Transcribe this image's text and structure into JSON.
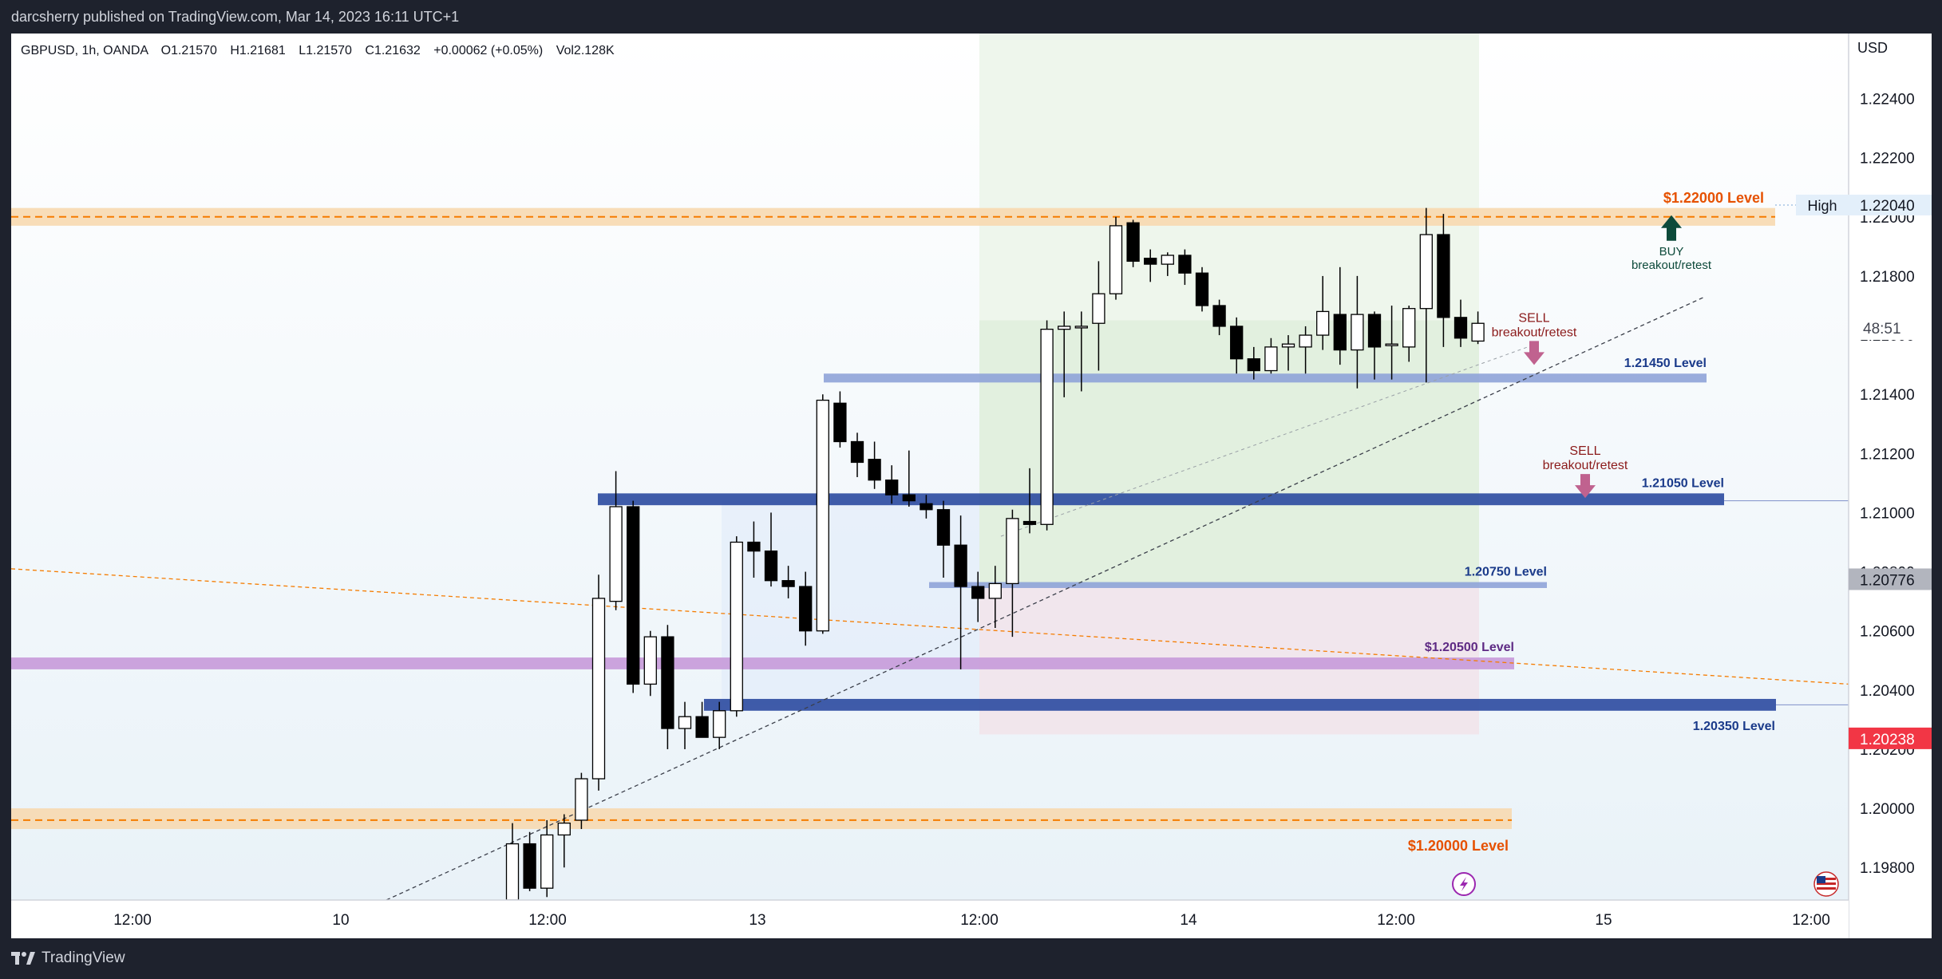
{
  "header": {
    "publisher_line": "darcsherry published on TradingView.com, Mar 14, 2023 16:11 UTC+1"
  },
  "footer": {
    "brand": "TradingView"
  },
  "legend": {
    "symbol": "GBPUSD, 1h, OANDA",
    "open": "O1.21570",
    "high": "H1.21681",
    "low": "L1.21570",
    "close": "C1.21632",
    "change": "+0.00062 (+0.05%)",
    "volume": "Vol2.128K"
  },
  "price_scale": {
    "currency": "USD",
    "ticks": [
      "1.22400",
      "1.22200",
      "1.22000",
      "1.21800",
      "1.21600",
      "1.21400",
      "1.21200",
      "1.21000",
      "1.20800",
      "1.20600",
      "1.20400",
      "1.20200",
      "1.20000",
      "1.19800"
    ],
    "badges": [
      {
        "label": "High",
        "value": "1.22040"
      },
      {
        "label": "countdown",
        "value": "48:51"
      },
      {
        "label": "price",
        "value": "1.20776"
      },
      {
        "label": "price",
        "value": "1.20238"
      }
    ]
  },
  "colors": {
    "bull": "#ffffff",
    "bear": "#000000",
    "orange_zone": "#f7d9b0",
    "orange_line": "#f57c00",
    "blue_zone": "#2b4aa0",
    "light_blue_zone": "#8fa3d8",
    "purple_zone": "#c79ad9",
    "green_box": "#e6f2e4",
    "pink_box": "#f1e3ea",
    "buy_arrow": "#0d4a3a",
    "sell_arrow": "#c0628f",
    "red_badge": "#f23645"
  },
  "chart_data": {
    "type": "candlestick",
    "symbol": "GBPUSD",
    "timeframe": "1h",
    "ylim": [
      1.1969,
      1.2262
    ],
    "x_ticks": [
      "12:00",
      "10",
      "12:00",
      "13",
      "12:00",
      "14",
      "12:00",
      "15",
      "12:00"
    ],
    "candles": [
      {
        "o": 1.1969,
        "h": 1.1995,
        "l": 1.1969,
        "c": 1.1988
      },
      {
        "o": 1.1988,
        "h": 1.1992,
        "l": 1.1972,
        "c": 1.1973
      },
      {
        "o": 1.1973,
        "h": 1.1996,
        "l": 1.197,
        "c": 1.1991
      },
      {
        "o": 1.1991,
        "h": 1.1998,
        "l": 1.198,
        "c": 1.1995
      },
      {
        "o": 1.1996,
        "h": 1.2012,
        "l": 1.1993,
        "c": 1.201
      },
      {
        "o": 1.201,
        "h": 1.2079,
        "l": 1.2006,
        "c": 1.2071
      },
      {
        "o": 1.207,
        "h": 1.2114,
        "l": 1.2067,
        "c": 1.2102
      },
      {
        "o": 1.2102,
        "h": 1.2104,
        "l": 1.2039,
        "c": 1.2042
      },
      {
        "o": 1.2042,
        "h": 1.206,
        "l": 1.2038,
        "c": 1.2058
      },
      {
        "o": 1.2058,
        "h": 1.2062,
        "l": 1.202,
        "c": 1.2027
      },
      {
        "o": 1.2027,
        "h": 1.2036,
        "l": 1.202,
        "c": 1.2031
      },
      {
        "o": 1.2031,
        "h": 1.2036,
        "l": 1.2025,
        "c": 1.2024
      },
      {
        "o": 1.2024,
        "h": 1.2036,
        "l": 1.202,
        "c": 1.2033
      },
      {
        "o": 1.2033,
        "h": 1.2092,
        "l": 1.2031,
        "c": 1.209
      },
      {
        "o": 1.209,
        "h": 1.2097,
        "l": 1.2078,
        "c": 1.2087
      },
      {
        "o": 1.2087,
        "h": 1.21,
        "l": 1.2075,
        "c": 1.2077
      },
      {
        "o": 1.2077,
        "h": 1.2082,
        "l": 1.2071,
        "c": 1.2075
      },
      {
        "o": 1.2075,
        "h": 1.208,
        "l": 1.2055,
        "c": 1.206
      },
      {
        "o": 1.206,
        "h": 1.214,
        "l": 1.2059,
        "c": 1.2138
      },
      {
        "o": 1.2137,
        "h": 1.2141,
        "l": 1.2122,
        "c": 1.2124
      },
      {
        "o": 1.2124,
        "h": 1.2127,
        "l": 1.2112,
        "c": 1.2117
      },
      {
        "o": 1.2118,
        "h": 1.2124,
        "l": 1.2108,
        "c": 1.2111
      },
      {
        "o": 1.2111,
        "h": 1.2116,
        "l": 1.2103,
        "c": 1.2106
      },
      {
        "o": 1.2106,
        "h": 1.2121,
        "l": 1.2102,
        "c": 1.2104
      },
      {
        "o": 1.2103,
        "h": 1.2106,
        "l": 1.2098,
        "c": 1.2101
      },
      {
        "o": 1.2101,
        "h": 1.2104,
        "l": 1.2078,
        "c": 1.2089
      },
      {
        "o": 1.2089,
        "h": 1.2099,
        "l": 1.2047,
        "c": 1.2075
      },
      {
        "o": 1.2075,
        "h": 1.208,
        "l": 1.2063,
        "c": 1.2071
      },
      {
        "o": 1.2071,
        "h": 1.2082,
        "l": 1.2061,
        "c": 1.2076
      },
      {
        "o": 1.2076,
        "h": 1.2101,
        "l": 1.2058,
        "c": 1.2098
      },
      {
        "o": 1.2097,
        "h": 1.2115,
        "l": 1.2093,
        "c": 1.2096
      },
      {
        "o": 1.2096,
        "h": 1.2165,
        "l": 1.2094,
        "c": 1.2162
      },
      {
        "o": 1.2162,
        "h": 1.2168,
        "l": 1.2139,
        "c": 1.2163
      },
      {
        "o": 1.2163,
        "h": 1.2168,
        "l": 1.2141,
        "c": 1.2163
      },
      {
        "o": 1.2164,
        "h": 1.2185,
        "l": 1.2148,
        "c": 1.2174
      },
      {
        "o": 1.2174,
        "h": 1.22,
        "l": 1.2172,
        "c": 1.2197
      },
      {
        "o": 1.2198,
        "h": 1.2199,
        "l": 1.2183,
        "c": 1.2185
      },
      {
        "o": 1.2186,
        "h": 1.2189,
        "l": 1.2178,
        "c": 1.2184
      },
      {
        "o": 1.2184,
        "h": 1.2188,
        "l": 1.218,
        "c": 1.2187
      },
      {
        "o": 1.2187,
        "h": 1.2189,
        "l": 1.2177,
        "c": 1.2181
      },
      {
        "o": 1.2181,
        "h": 1.2183,
        "l": 1.2168,
        "c": 1.217
      },
      {
        "o": 1.217,
        "h": 1.2172,
        "l": 1.216,
        "c": 1.2163
      },
      {
        "o": 1.2163,
        "h": 1.2166,
        "l": 1.2147,
        "c": 1.2152
      },
      {
        "o": 1.2152,
        "h": 1.2156,
        "l": 1.2145,
        "c": 1.2148
      },
      {
        "o": 1.2148,
        "h": 1.2159,
        "l": 1.2147,
        "c": 1.2156
      },
      {
        "o": 1.2156,
        "h": 1.216,
        "l": 1.2148,
        "c": 1.2157
      },
      {
        "o": 1.2156,
        "h": 1.2163,
        "l": 1.2147,
        "c": 1.216
      },
      {
        "o": 1.216,
        "h": 1.218,
        "l": 1.2155,
        "c": 1.2168
      },
      {
        "o": 1.2167,
        "h": 1.2183,
        "l": 1.215,
        "c": 1.2155
      },
      {
        "o": 1.2155,
        "h": 1.218,
        "l": 1.2142,
        "c": 1.2167
      },
      {
        "o": 1.2167,
        "h": 1.2168,
        "l": 1.2145,
        "c": 1.2156
      },
      {
        "o": 1.2157,
        "h": 1.217,
        "l": 1.2145,
        "c": 1.2157
      },
      {
        "o": 1.2156,
        "h": 1.217,
        "l": 1.2151,
        "c": 1.2169
      },
      {
        "o": 1.2169,
        "h": 1.2203,
        "l": 1.2144,
        "c": 1.2194
      },
      {
        "o": 1.2194,
        "h": 1.2201,
        "l": 1.2156,
        "c": 1.2166
      },
      {
        "o": 1.2166,
        "h": 1.2172,
        "l": 1.2156,
        "c": 1.2159
      },
      {
        "o": 1.2158,
        "h": 1.2168,
        "l": 1.2157,
        "c": 1.2164
      }
    ],
    "levels": [
      {
        "kind": "orange",
        "price": 1.22,
        "label": "$1.22000 Level"
      },
      {
        "kind": "orange",
        "price": 1.1997,
        "label": "$1.20000 Level"
      },
      {
        "kind": "light_blue",
        "price": 1.2145,
        "label": "1.21450 Level"
      },
      {
        "kind": "blue",
        "price": 1.2104,
        "label": "1.21050 Level"
      },
      {
        "kind": "light_blue",
        "price": 1.2075,
        "label": "1.20750 Level"
      },
      {
        "kind": "purple",
        "price": 1.2049,
        "label": "$1.20500 Level"
      },
      {
        "kind": "blue",
        "price": 1.2035,
        "label": "1.20350 Level"
      }
    ],
    "annotations": [
      {
        "type": "buy",
        "line1": "BUY",
        "line2": "breakout/retest"
      },
      {
        "type": "sell",
        "line1": "SELL",
        "line2": "breakout/retest"
      },
      {
        "type": "sell",
        "line1": "SELL",
        "line2": "breakout/retest"
      }
    ]
  }
}
